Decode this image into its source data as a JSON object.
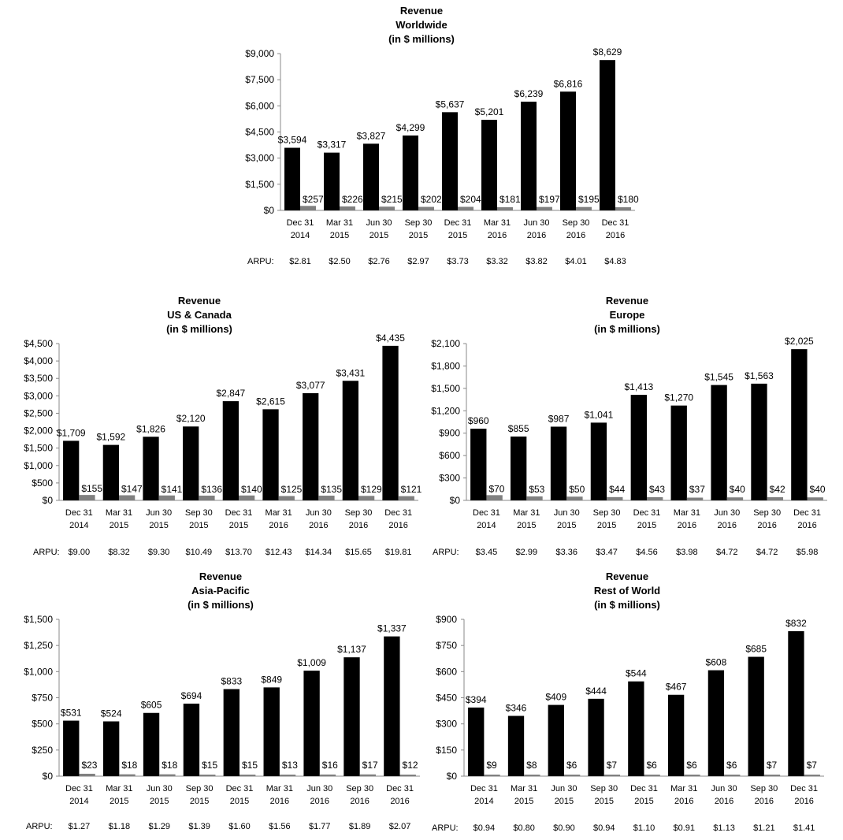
{
  "chart_data": [
    {
      "type": "bar",
      "title": [
        "Revenue",
        "Worldwide",
        "(in $ millions)"
      ],
      "categories": [
        "Dec 31 2014",
        "Mar 31 2015",
        "Jun 30 2015",
        "Sep 30 2015",
        "Dec 31 2015",
        "Mar 31 2016",
        "Jun 30 2016",
        "Sep 30 2016",
        "Dec 31 2016"
      ],
      "category_lines": [
        [
          "Dec 31",
          "2014"
        ],
        [
          "Mar 31",
          "2015"
        ],
        [
          "Jun 30",
          "2015"
        ],
        [
          "Sep 30",
          "2015"
        ],
        [
          "Dec 31",
          "2015"
        ],
        [
          "Mar 31",
          "2016"
        ],
        [
          "Jun 30",
          "2016"
        ],
        [
          "Sep 30",
          "2016"
        ],
        [
          "Dec 31",
          "2016"
        ]
      ],
      "series": [
        {
          "values": [
            3594,
            3317,
            3827,
            4299,
            5637,
            5201,
            6239,
            6816,
            8629
          ],
          "labels": [
            "$3,594",
            "$3,317",
            "$3,827",
            "$4,299",
            "$5,637",
            "$5,201",
            "$6,239",
            "$6,816",
            "$8,629"
          ],
          "color": "#000000"
        },
        {
          "values": [
            257,
            226,
            215,
            202,
            204,
            181,
            197,
            195,
            180
          ],
          "labels": [
            "$257",
            "$226",
            "$215",
            "$202",
            "$204",
            "$181",
            "$197",
            "$195",
            "$180"
          ],
          "color": "#808080"
        }
      ],
      "ylim": [
        0,
        9000
      ],
      "yticks": [
        0,
        1500,
        3000,
        4500,
        6000,
        7500,
        9000
      ],
      "ytick_labels": [
        "$0",
        "$1,500",
        "$3,000",
        "$4,500",
        "$6,000",
        "$7,500",
        "$9,000"
      ],
      "arpu_label": "ARPU:",
      "arpu": [
        "$2.81",
        "$2.50",
        "$2.76",
        "$2.97",
        "$3.73",
        "$3.32",
        "$3.82",
        "$4.01",
        "$4.83"
      ]
    },
    {
      "type": "bar",
      "title": [
        "Revenue",
        "US & Canada",
        "(in $ millions)"
      ],
      "categories": [
        "Dec 31 2014",
        "Mar 31 2015",
        "Jun 30 2015",
        "Sep 30 2015",
        "Dec 31 2015",
        "Mar 31 2016",
        "Jun 30 2016",
        "Sep 30 2016",
        "Dec 31 2016"
      ],
      "category_lines": [
        [
          "Dec 31",
          "2014"
        ],
        [
          "Mar 31",
          "2015"
        ],
        [
          "Jun 30",
          "2015"
        ],
        [
          "Sep 30",
          "2015"
        ],
        [
          "Dec 31",
          "2015"
        ],
        [
          "Mar 31",
          "2016"
        ],
        [
          "Jun 30",
          "2016"
        ],
        [
          "Sep 30",
          "2016"
        ],
        [
          "Dec 31",
          "2016"
        ]
      ],
      "series": [
        {
          "values": [
            1709,
            1592,
            1826,
            2120,
            2847,
            2615,
            3077,
            3431,
            4435
          ],
          "labels": [
            "$1,709",
            "$1,592",
            "$1,826",
            "$2,120",
            "$2,847",
            "$2,615",
            "$3,077",
            "$3,431",
            "$4,435"
          ],
          "color": "#000000"
        },
        {
          "values": [
            155,
            147,
            141,
            136,
            140,
            125,
            135,
            129,
            121
          ],
          "labels": [
            "$155",
            "$147",
            "$141",
            "$136",
            "$140",
            "$125",
            "$135",
            "$129",
            "$121"
          ],
          "color": "#808080"
        }
      ],
      "ylim": [
        0,
        4500
      ],
      "yticks": [
        0,
        500,
        1000,
        1500,
        2000,
        2500,
        3000,
        3500,
        4000,
        4500
      ],
      "ytick_labels": [
        "$0",
        "$500",
        "$1,000",
        "$1,500",
        "$2,000",
        "$2,500",
        "$3,000",
        "$3,500",
        "$4,000",
        "$4,500"
      ],
      "arpu_label": "ARPU:",
      "arpu": [
        "$9.00",
        "$8.32",
        "$9.30",
        "$10.49",
        "$13.70",
        "$12.43",
        "$14.34",
        "$15.65",
        "$19.81"
      ]
    },
    {
      "type": "bar",
      "title": [
        "Revenue",
        "Europe",
        "(in $ millions)"
      ],
      "categories": [
        "Dec 31 2014",
        "Mar 31 2015",
        "Jun 30 2015",
        "Sep 30 2015",
        "Dec 31 2015",
        "Mar 31 2016",
        "Jun 30 2016",
        "Sep 30 2016",
        "Dec 31 2016"
      ],
      "category_lines": [
        [
          "Dec 31",
          "2014"
        ],
        [
          "Mar 31",
          "2015"
        ],
        [
          "Jun 30",
          "2015"
        ],
        [
          "Sep 30",
          "2015"
        ],
        [
          "Dec 31",
          "2015"
        ],
        [
          "Mar 31",
          "2016"
        ],
        [
          "Jun 30",
          "2016"
        ],
        [
          "Sep 30",
          "2016"
        ],
        [
          "Dec 31",
          "2016"
        ]
      ],
      "series": [
        {
          "values": [
            960,
            855,
            987,
            1041,
            1413,
            1270,
            1545,
            1563,
            2025
          ],
          "labels": [
            "$960",
            "$855",
            "$987",
            "$1,041",
            "$1,413",
            "$1,270",
            "$1,545",
            "$1,563",
            "$2,025"
          ],
          "color": "#000000"
        },
        {
          "values": [
            70,
            53,
            50,
            44,
            43,
            37,
            40,
            42,
            40
          ],
          "labels": [
            "$70",
            "$53",
            "$50",
            "$44",
            "$43",
            "$37",
            "$40",
            "$42",
            "$40"
          ],
          "color": "#808080"
        }
      ],
      "ylim": [
        0,
        2100
      ],
      "yticks": [
        0,
        300,
        600,
        900,
        1200,
        1500,
        1800,
        2100
      ],
      "ytick_labels": [
        "$0",
        "$300",
        "$600",
        "$900",
        "$1,200",
        "$1,500",
        "$1,800",
        "$2,100"
      ],
      "arpu_label": "ARPU:",
      "arpu": [
        "$3.45",
        "$2.99",
        "$3.36",
        "$3.47",
        "$4.56",
        "$3.98",
        "$4.72",
        "$4.72",
        "$5.98"
      ]
    },
    {
      "type": "bar",
      "title": [
        "Revenue",
        "Asia-Pacific",
        "(in $ millions)"
      ],
      "categories": [
        "Dec 31 2014",
        "Mar 31 2015",
        "Jun 30 2015",
        "Sep 30 2015",
        "Dec 31 2015",
        "Mar 31 2016",
        "Jun 30 2016",
        "Sep 30 2016",
        "Dec 31 2016"
      ],
      "category_lines": [
        [
          "Dec 31",
          "2014"
        ],
        [
          "Mar 31",
          "2015"
        ],
        [
          "Jun 30",
          "2015"
        ],
        [
          "Sep 30",
          "2015"
        ],
        [
          "Dec 31",
          "2015"
        ],
        [
          "Mar 31",
          "2016"
        ],
        [
          "Jun 30",
          "2016"
        ],
        [
          "Sep 30",
          "2016"
        ],
        [
          "Dec 31",
          "2016"
        ]
      ],
      "series": [
        {
          "values": [
            531,
            524,
            605,
            694,
            833,
            849,
            1009,
            1137,
            1337
          ],
          "labels": [
            "$531",
            "$524",
            "$605",
            "$694",
            "$833",
            "$849",
            "$1,009",
            "$1,137",
            "$1,337"
          ],
          "color": "#000000"
        },
        {
          "values": [
            23,
            18,
            18,
            15,
            15,
            13,
            16,
            17,
            12
          ],
          "labels": [
            "$23",
            "$18",
            "$18",
            "$15",
            "$15",
            "$13",
            "$16",
            "$17",
            "$12"
          ],
          "color": "#808080"
        }
      ],
      "ylim": [
        0,
        1500
      ],
      "yticks": [
        0,
        250,
        500,
        750,
        1000,
        1250,
        1500
      ],
      "ytick_labels": [
        "$0",
        "$250",
        "$500",
        "$750",
        "$1,000",
        "$1,250",
        "$1,500"
      ],
      "arpu_label": "ARPU:",
      "arpu": [
        "$1.27",
        "$1.18",
        "$1.29",
        "$1.39",
        "$1.60",
        "$1.56",
        "$1.77",
        "$1.89",
        "$2.07"
      ]
    },
    {
      "type": "bar",
      "title": [
        "Revenue",
        "Rest of World",
        "(in $ millions)"
      ],
      "categories": [
        "Dec 31 2014",
        "Mar 31 2015",
        "Jun 30 2015",
        "Sep 30 2015",
        "Dec 31 2015",
        "Mar 31 2016",
        "Jun 30 2016",
        "Sep 30 2016",
        "Dec 31 2016"
      ],
      "category_lines": [
        [
          "Dec 31",
          "2014"
        ],
        [
          "Mar 31",
          "2015"
        ],
        [
          "Jun 30",
          "2015"
        ],
        [
          "Sep 30",
          "2015"
        ],
        [
          "Dec 31",
          "2015"
        ],
        [
          "Mar 31",
          "2016"
        ],
        [
          "Jun 30",
          "2016"
        ],
        [
          "Sep 30",
          "2016"
        ],
        [
          "Dec 31",
          "2016"
        ]
      ],
      "series": [
        {
          "values": [
            394,
            346,
            409,
            444,
            544,
            467,
            608,
            685,
            832
          ],
          "labels": [
            "$394",
            "$346",
            "$409",
            "$444",
            "$544",
            "$467",
            "$608",
            "$685",
            "$832"
          ],
          "color": "#000000"
        },
        {
          "values": [
            9,
            8,
            6,
            7,
            6,
            6,
            6,
            7,
            7
          ],
          "labels": [
            "$9",
            "$8",
            "$6",
            "$7",
            "$6",
            "$6",
            "$6",
            "$7",
            "$7"
          ],
          "color": "#808080"
        }
      ],
      "ylim": [
        0,
        900
      ],
      "yticks": [
        0,
        150,
        300,
        450,
        600,
        750,
        900
      ],
      "ytick_labels": [
        "$0",
        "$150",
        "$300",
        "$450",
        "$600",
        "$750",
        "$900"
      ],
      "arpu_label": "ARPU:",
      "arpu": [
        "$0.94",
        "$0.80",
        "$0.90",
        "$0.94",
        "$1.10",
        "$0.91",
        "$1.13",
        "$1.21",
        "$1.41"
      ]
    }
  ]
}
